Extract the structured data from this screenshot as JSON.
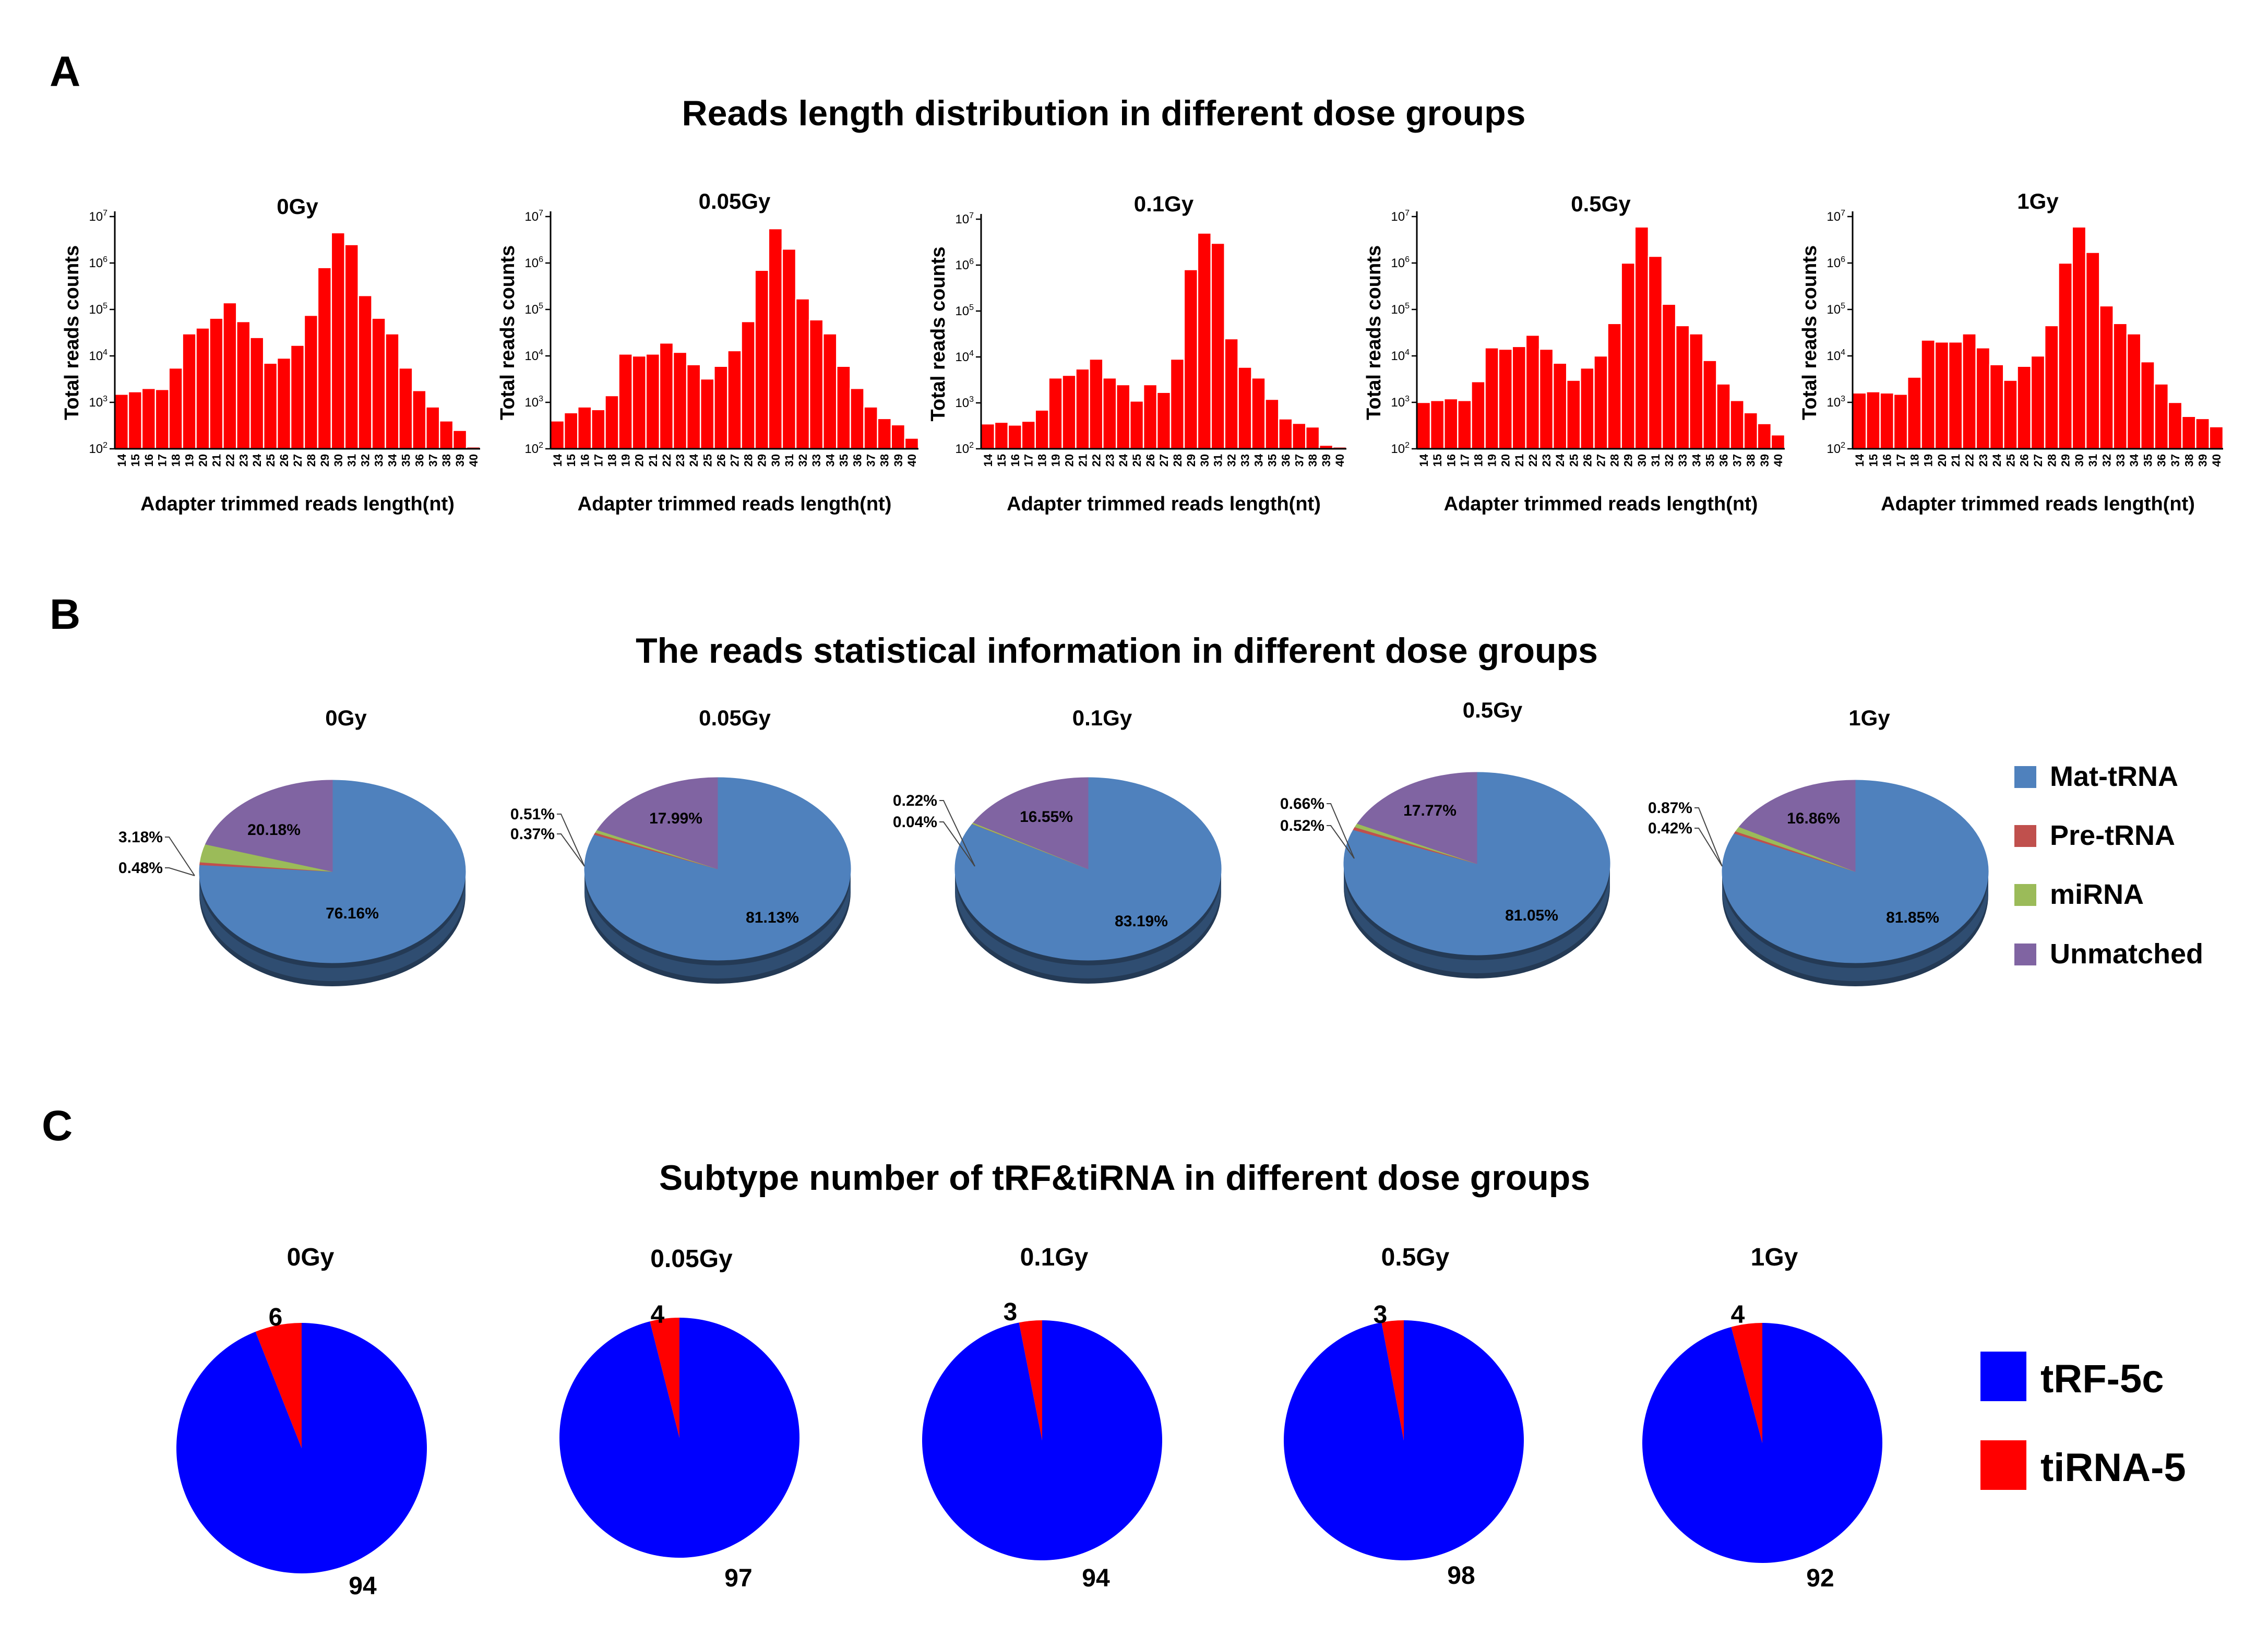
{
  "panels": {
    "a": {
      "letter": "A",
      "title": "Reads length distribution in different dose groups"
    },
    "b": {
      "letter": "B",
      "title": "The reads statistical information in different dose groups"
    },
    "c": {
      "letter": "C",
      "title": "Subtype number of tRF&tiRNA in different dose groups"
    }
  },
  "colors": {
    "bar": "#ff0000",
    "mat_trna": "#4f81bd",
    "pre_trna": "#c0504d",
    "mirna": "#9bbb59",
    "unmatched": "#8064a2",
    "trf_5c": "#0000ff",
    "tirna_5": "#ff0000"
  },
  "chart_data": [
    {
      "type": "bar",
      "panel": "A",
      "groups": [
        "0Gy",
        "0.05Gy",
        "0.1Gy",
        "0.5Gy",
        "1Gy"
      ],
      "xlabel": "Adapter trimmed reads length(nt)",
      "ylabel": "Total reads counts",
      "yscale": "log",
      "ylim": [
        100,
        10000000
      ],
      "ytick_exponents": [
        2,
        3,
        4,
        5,
        6,
        7
      ],
      "categories": [
        "14",
        "15",
        "16",
        "17",
        "18",
        "19",
        "20",
        "21",
        "22",
        "23",
        "24",
        "25",
        "26",
        "27",
        "28",
        "29",
        "30",
        "31",
        "32",
        "33",
        "34",
        "35",
        "36",
        "37",
        "38",
        "39",
        "40"
      ],
      "series": [
        {
          "name": "0Gy",
          "values": [
            1500,
            1700,
            2000,
            1900,
            5500,
            30000,
            40000,
            65000,
            140000,
            55000,
            25000,
            7000,
            9000,
            17000,
            75000,
            800000,
            4500000,
            2500000,
            200000,
            65000,
            30000,
            5500,
            1800,
            800,
            400,
            250,
            110
          ]
        },
        {
          "name": "0.05Gy",
          "values": [
            400,
            600,
            800,
            700,
            1400,
            11000,
            10000,
            11000,
            19000,
            12000,
            6500,
            3200,
            6000,
            13000,
            55000,
            700000,
            5500000,
            2000000,
            170000,
            60000,
            30000,
            6000,
            2000,
            800,
            450,
            330,
            170
          ]
        },
        {
          "name": "0.1Gy",
          "values": [
            350,
            380,
            330,
            400,
            700,
            3500,
            4000,
            5500,
            9000,
            3500,
            2500,
            1100,
            2500,
            1700,
            9000,
            800000,
            5000000,
            3000000,
            25000,
            6000,
            3500,
            1200,
            450,
            360,
            300,
            120,
            110
          ]
        },
        {
          "name": "0.5Gy",
          "values": [
            1000,
            1100,
            1200,
            1100,
            2800,
            15000,
            14000,
            16000,
            28000,
            14000,
            7000,
            3000,
            5500,
            10000,
            50000,
            1000000,
            6000000,
            1400000,
            130000,
            45000,
            30000,
            8000,
            2500,
            1100,
            600,
            350,
            200
          ]
        },
        {
          "name": "1Gy",
          "values": [
            1600,
            1700,
            1600,
            1500,
            3500,
            22000,
            20000,
            20000,
            30000,
            15000,
            6500,
            3000,
            6000,
            10000,
            45000,
            1000000,
            6000000,
            1700000,
            120000,
            50000,
            30000,
            7500,
            2500,
            1000,
            500,
            450,
            300
          ]
        }
      ]
    },
    {
      "type": "pie",
      "panel": "B",
      "legend": [
        "Mat-tRNA",
        "Pre-tRNA",
        "miRNA",
        "Unmatched"
      ],
      "legend_position": "right",
      "pies": [
        {
          "title": "0Gy",
          "values": [
            76.16,
            0.48,
            3.18,
            20.18
          ],
          "labels": [
            "76.16%",
            "0.48%",
            "3.18%",
            "20.18%"
          ]
        },
        {
          "title": "0.05Gy",
          "values": [
            81.13,
            0.37,
            0.51,
            17.99
          ],
          "labels": [
            "81.13%",
            "0.37%",
            "0.51%",
            "17.99%"
          ]
        },
        {
          "title": "0.1Gy",
          "values": [
            83.19,
            0.04,
            0.22,
            16.55
          ],
          "labels": [
            "83.19%",
            "0.04%",
            "0.22%",
            "16.55%"
          ]
        },
        {
          "title": "0.5Gy",
          "values": [
            81.05,
            0.52,
            0.66,
            17.77
          ],
          "labels": [
            "81.05%",
            "0.52%",
            "0.66%",
            "17.77%"
          ]
        },
        {
          "title": "1Gy",
          "values": [
            81.85,
            0.42,
            0.87,
            16.86
          ],
          "labels": [
            "81.85%",
            "0.42%",
            "0.87%",
            "16.86%"
          ]
        }
      ]
    },
    {
      "type": "pie",
      "panel": "C",
      "legend": [
        "tRF-5c",
        "tiRNA-5"
      ],
      "legend_position": "right",
      "pies": [
        {
          "title": "0Gy",
          "values": [
            94,
            6
          ]
        },
        {
          "title": "0.05Gy",
          "values": [
            97,
            4
          ]
        },
        {
          "title": "0.1Gy",
          "values": [
            94,
            3
          ]
        },
        {
          "title": "0.5Gy",
          "values": [
            98,
            3
          ]
        },
        {
          "title": "1Gy",
          "values": [
            92,
            4
          ]
        }
      ]
    }
  ]
}
